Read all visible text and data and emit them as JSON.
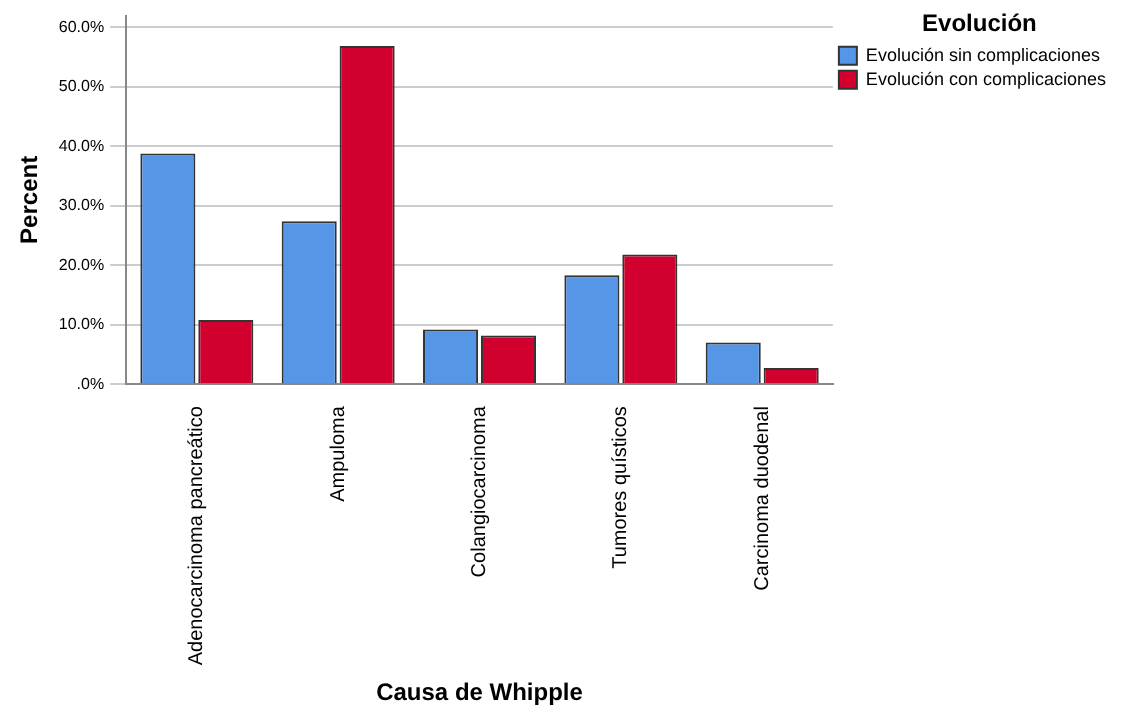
{
  "chart_data": {
    "type": "bar",
    "xlabel": "Causa de Whipple",
    "ylabel": "Percent",
    "legend_title": "Evolución",
    "legend": "top right",
    "grid": "y",
    "categories": [
      "Adenocarcinoma pancreático",
      "Ampuloma",
      "Colangiocarcinoma",
      "Tumores quísticos",
      "Carcinoma duodenal"
    ],
    "series": [
      {
        "name": "Evolución sin complicaciones",
        "color": "#5596e6",
        "values": [
          38.8,
          27.4,
          9.2,
          18.3,
          7.0
        ]
      },
      {
        "name": "Evolución con complicaciones",
        "color": "#d2002e",
        "values": [
          10.8,
          56.9,
          8.2,
          21.8,
          2.7
        ]
      }
    ],
    "ylim": [
      0,
      62
    ],
    "yticks": [
      {
        "value": 0,
        "label": ".0%"
      },
      {
        "value": 10,
        "label": "10.0%"
      },
      {
        "value": 20,
        "label": "20.0%"
      },
      {
        "value": 30,
        "label": "30.0%"
      },
      {
        "value": 40,
        "label": "40.0%"
      },
      {
        "value": 50,
        "label": "50.0%"
      },
      {
        "value": 60,
        "label": "60.0%"
      }
    ]
  }
}
